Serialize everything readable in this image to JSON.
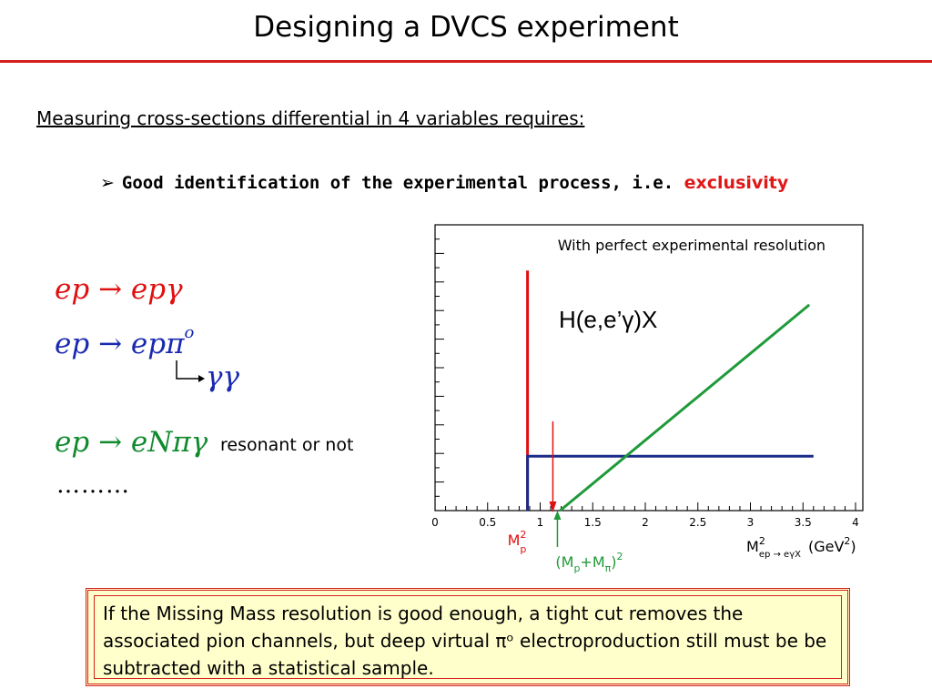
{
  "slide": {
    "title": "Designing a DVCS experiment",
    "subheading": "Measuring cross-sections differential in 4 variables requires:",
    "bullet": {
      "marker": "➢",
      "text": "Good identification of the experimental process, i.e.",
      "highlight": "exclusivity"
    },
    "reactions": [
      {
        "lhs": "ep",
        "arrow": "→",
        "rhs": "epγ",
        "color": "#e01010"
      },
      {
        "lhs": "ep",
        "arrow": "→",
        "rhs": "epπ",
        "superscript": "o",
        "color": "#1a2ab0"
      },
      {
        "decay": "γγ",
        "color": "#1a2ab0"
      },
      {
        "lhs": "ep",
        "arrow": "→",
        "rhs": "eNπγ",
        "color": "#118a2e"
      }
    ],
    "resonant_note": "resonant or not",
    "ellipsis": "………",
    "note": "If the Missing Mass resolution is good enough,  a tight cut removes the associated pion channels, but deep virtual πᵒ electroproduction still must be be subtracted with a statistical sample."
  },
  "chart_data": {
    "type": "line",
    "title": "With perfect experimental resolution",
    "annotation": "H(e,e’γ)X",
    "xlabel": "M²ep → eγX  (GeV²)",
    "xlim": [
      0,
      4
    ],
    "ylim": [
      0,
      1
    ],
    "x_ticks": [
      "0",
      "0.5",
      "1",
      "1.5",
      "2",
      "2.5",
      "3",
      "3.5",
      "4"
    ],
    "grid": false,
    "series": [
      {
        "color": "#e01010",
        "x": [
          0.88,
          0.88
        ],
        "y": [
          0,
          0.84
        ]
      },
      {
        "color": "#1a2a8a",
        "x": [
          0.88,
          0.88,
          3.6
        ],
        "y": [
          0,
          0.19,
          0.19
        ]
      },
      {
        "color": "#1f9a3a",
        "x": [
          1.19,
          3.56
        ],
        "y": [
          0,
          0.72
        ]
      }
    ],
    "markers": [
      {
        "label": "M²p",
        "x": 0.88,
        "color": "#e01010"
      },
      {
        "label": "(Mp+Mπ)²",
        "x": 1.19,
        "color": "#1f9a3a"
      }
    ],
    "colors": {
      "red": "#e01010",
      "blue": "#1a2a8a",
      "green": "#1f9a3a"
    }
  }
}
